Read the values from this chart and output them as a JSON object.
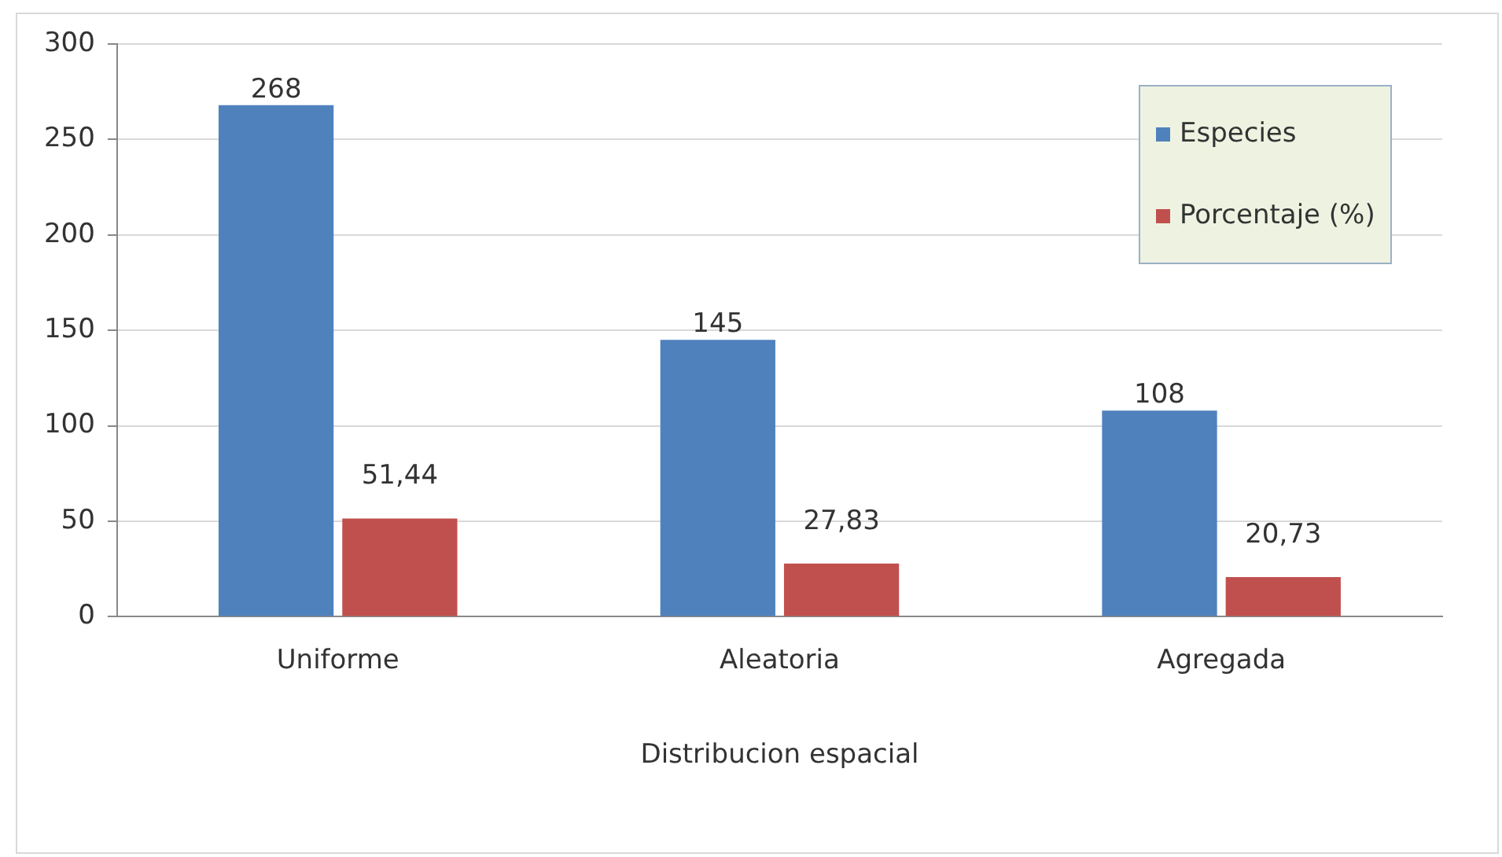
{
  "chart_data": {
    "type": "bar",
    "xlabel": "Distribucion espacial",
    "categories": [
      "Uniforme",
      "Aleatoria",
      "Agregada"
    ],
    "series": [
      {
        "name": "Especies",
        "color": "#4f81bd",
        "values": [
          268,
          145,
          108
        ],
        "value_labels": [
          "268",
          "145",
          "108"
        ]
      },
      {
        "name": "Porcentaje (%)",
        "color": "#c0504d",
        "values": [
          51.44,
          27.83,
          20.73
        ],
        "value_labels": [
          "51,44",
          "27,83",
          "20,73"
        ]
      }
    ],
    "ylim": [
      0,
      300
    ],
    "yticks": [
      0,
      50,
      100,
      150,
      200,
      250,
      300
    ],
    "grid": "y",
    "legend": "top right"
  }
}
